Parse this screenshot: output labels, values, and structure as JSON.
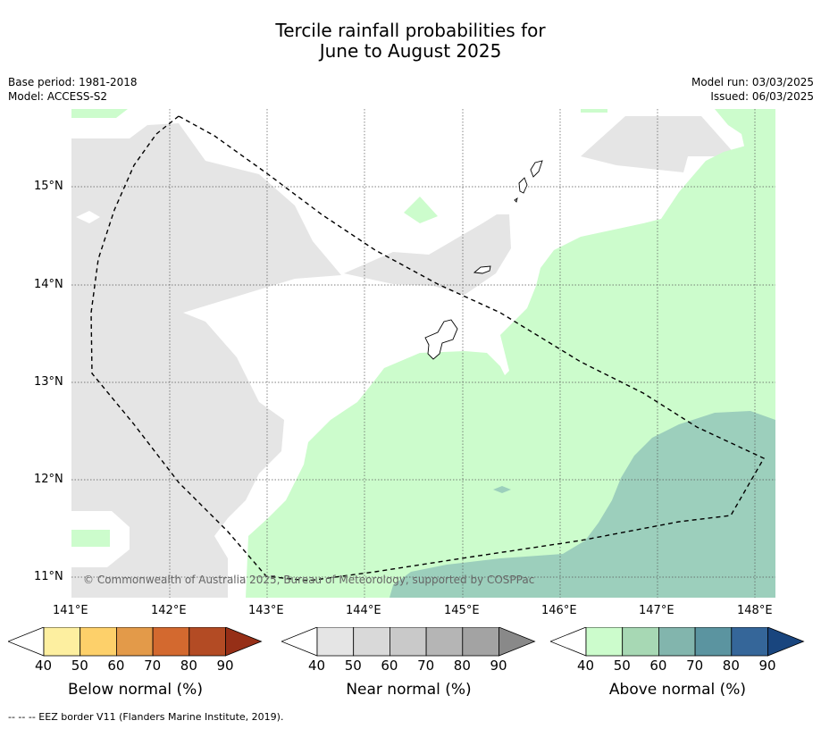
{
  "title": {
    "line1": "Tercile rainfall probabilities for",
    "line2": "June to August 2025"
  },
  "meta": {
    "base_period": "Base period: 1981-2018",
    "model": "Model: ACCESS-S2",
    "model_run": "Model run: 03/03/2025",
    "issued": "Issued: 06/03/2025"
  },
  "map": {
    "lon_labels": [
      "141°E",
      "142°E",
      "143°E",
      "144°E",
      "145°E",
      "146°E",
      "147°E",
      "148°E"
    ],
    "lat_labels": [
      "15°N",
      "14°N",
      "13°N",
      "12°N",
      "11°N"
    ],
    "copyright": "© Commonwealth of Australia 2025, Bureau of Meteorology, supported by COSPPac",
    "colors": {
      "near_normal_40": "#e5e5e5",
      "above_normal_40": "#ccfccc",
      "above_normal_60": "#9ccfbc",
      "land_outline": "#000000",
      "eez_border": "#000000"
    }
  },
  "colorbars": [
    {
      "label": "Below normal (%)",
      "ticks": [
        "40",
        "50",
        "60",
        "70",
        "80",
        "90"
      ],
      "colors": [
        "#fdefa0",
        "#fdd06a",
        "#e39a49",
        "#d3692f",
        "#b34b24",
        "#962f17"
      ]
    },
    {
      "label": "Near normal (%)",
      "ticks": [
        "40",
        "50",
        "60",
        "70",
        "80",
        "90"
      ],
      "colors": [
        "#e5e5e5",
        "#d9d9d9",
        "#c9c9c9",
        "#b5b5b5",
        "#a3a3a3",
        "#898989"
      ]
    },
    {
      "label": "Above normal (%)",
      "ticks": [
        "40",
        "50",
        "60",
        "70",
        "80",
        "90"
      ],
      "colors": [
        "#ccfccc",
        "#a7d8b4",
        "#82b5ad",
        "#5b94a0",
        "#356699",
        "#19457e"
      ]
    }
  ],
  "footnote": "--  --  -- EEZ border V11 (Flanders Marine Institute, 2019)."
}
